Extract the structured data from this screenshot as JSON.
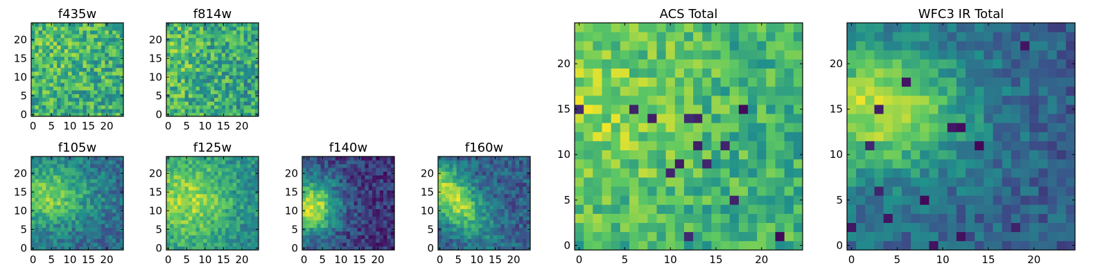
{
  "figure": {
    "colormap": "viridis",
    "colormap_stops": [
      "#440154",
      "#3b528b",
      "#21918c",
      "#5ec962",
      "#fde725"
    ]
  },
  "chart_data": [
    {
      "type": "heatmap",
      "title": "f435w",
      "grid_size": [
        25,
        25
      ],
      "xlim": [
        0,
        24
      ],
      "ylim": [
        0,
        24
      ],
      "xticks": [
        0,
        5,
        10,
        15,
        20
      ],
      "yticks": [
        0,
        5,
        10,
        15,
        20
      ],
      "grid": false,
      "pattern": "uniform noise, no clear structure",
      "value_range": [
        0,
        1
      ],
      "values": []
    },
    {
      "type": "heatmap",
      "title": "f814w",
      "grid_size": [
        25,
        25
      ],
      "xlim": [
        0,
        24
      ],
      "ylim": [
        0,
        24
      ],
      "xticks": [
        0,
        5,
        10,
        15,
        20
      ],
      "yticks": [
        0,
        5,
        10,
        15,
        20
      ],
      "grid": false,
      "pattern": "uniform noise, slightly brighter on the left",
      "value_range": [
        0,
        1
      ],
      "values": []
    },
    {
      "type": "heatmap",
      "title": "f105w",
      "grid_size": [
        25,
        25
      ],
      "xlim": [
        0,
        24
      ],
      "ylim": [
        0,
        24
      ],
      "xticks": [
        0,
        5,
        10,
        15,
        20
      ],
      "yticks": [
        0,
        5,
        10,
        15,
        20
      ],
      "grid": false,
      "pattern": "bright diffuse band toward the left center (y 10-18)",
      "value_range": [
        0,
        1
      ],
      "values": []
    },
    {
      "type": "heatmap",
      "title": "f125w",
      "grid_size": [
        25,
        25
      ],
      "xlim": [
        0,
        24
      ],
      "ylim": [
        0,
        24
      ],
      "xticks": [
        0,
        5,
        10,
        15,
        20
      ],
      "yticks": [
        0,
        5,
        10,
        15,
        20
      ],
      "grid": false,
      "pattern": "bright diffuse emission in the left half",
      "value_range": [
        0,
        1
      ],
      "values": []
    },
    {
      "type": "heatmap",
      "title": "f140w",
      "grid_size": [
        25,
        25
      ],
      "xlim": [
        0,
        24
      ],
      "ylim": [
        0,
        24
      ],
      "xticks": [
        0,
        5,
        10,
        15,
        20
      ],
      "yticks": [
        0,
        5,
        10,
        15,
        20
      ],
      "grid": false,
      "pattern": "bright blob at lower left (x 0-6, y 8-15), dark right side",
      "value_range": [
        0,
        1
      ],
      "values": []
    },
    {
      "type": "heatmap",
      "title": "f160w",
      "grid_size": [
        25,
        25
      ],
      "xlim": [
        0,
        24
      ],
      "ylim": [
        0,
        24
      ],
      "xticks": [
        0,
        5,
        10,
        15,
        20
      ],
      "yticks": [
        0,
        5,
        10,
        15,
        20
      ],
      "grid": false,
      "pattern": "bright diagonal band from left (y 10-18) fading toward lower right",
      "value_range": [
        0,
        1
      ],
      "values": []
    },
    {
      "type": "heatmap",
      "title": "ACS Total",
      "grid_size": [
        25,
        25
      ],
      "xlim": [
        0,
        24
      ],
      "ylim": [
        0,
        24
      ],
      "xticks": [
        0,
        5,
        10,
        15,
        20
      ],
      "yticks": [
        0,
        5,
        10,
        15,
        20
      ],
      "grid": false,
      "pattern": "mostly green-yellow with scattered dark pixels; brighter toward the left",
      "value_range": [
        0,
        1
      ],
      "values": []
    },
    {
      "type": "heatmap",
      "title": "WFC3 IR Total",
      "grid_size": [
        25,
        25
      ],
      "xlim": [
        0,
        24
      ],
      "ylim": [
        0,
        24
      ],
      "xticks": [
        0,
        5,
        10,
        15,
        20
      ],
      "yticks": [
        0,
        5,
        10,
        15,
        20
      ],
      "grid": false,
      "pattern": "bright yellow region at left (x 0-8, y 10-18) fading to teal on the right, dark pixels at right and lower left",
      "value_range": [
        0,
        1
      ],
      "values": []
    }
  ]
}
